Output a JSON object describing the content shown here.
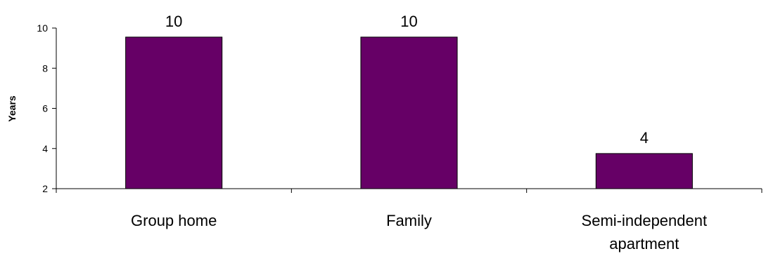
{
  "chart_data": {
    "type": "bar",
    "categories": [
      [
        "Group home"
      ],
      [
        "Family"
      ],
      [
        "Semi-independent",
        "apartment"
      ]
    ],
    "values": [
      9.55,
      9.55,
      3.75
    ],
    "data_labels": [
      "10",
      "10",
      "4"
    ],
    "xlabel": "",
    "ylabel": "Years",
    "ylim": [
      2,
      10
    ],
    "yticks": [
      "2",
      "4",
      "6",
      "8",
      "10"
    ],
    "grid": false,
    "legend": "none",
    "bar_color": "#660066",
    "bar_edge_color": "#000000"
  }
}
